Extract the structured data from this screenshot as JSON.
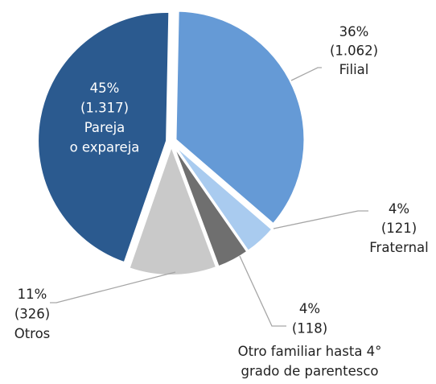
{
  "chart_data": {
    "type": "pie",
    "categories": [
      "Pareja\no expareja",
      "Filial",
      "Fraternal",
      "Otro familiar hasta 4°\ngrado de parentesco",
      "Otros"
    ],
    "values": [
      45,
      36,
      4,
      4,
      11
    ],
    "value_labels": [
      "45%",
      "36%",
      "4%",
      "4%",
      "11%"
    ],
    "counts": [
      1317,
      1062,
      121,
      118,
      326
    ],
    "count_labels": [
      "(1.317)",
      "(1.062)",
      "(121)",
      "(118)",
      "(326)"
    ],
    "colors": [
      "#2b5a8f",
      "#659ad6",
      "#a9cbef",
      "#6f6f6f",
      "#c9c9c9"
    ]
  }
}
